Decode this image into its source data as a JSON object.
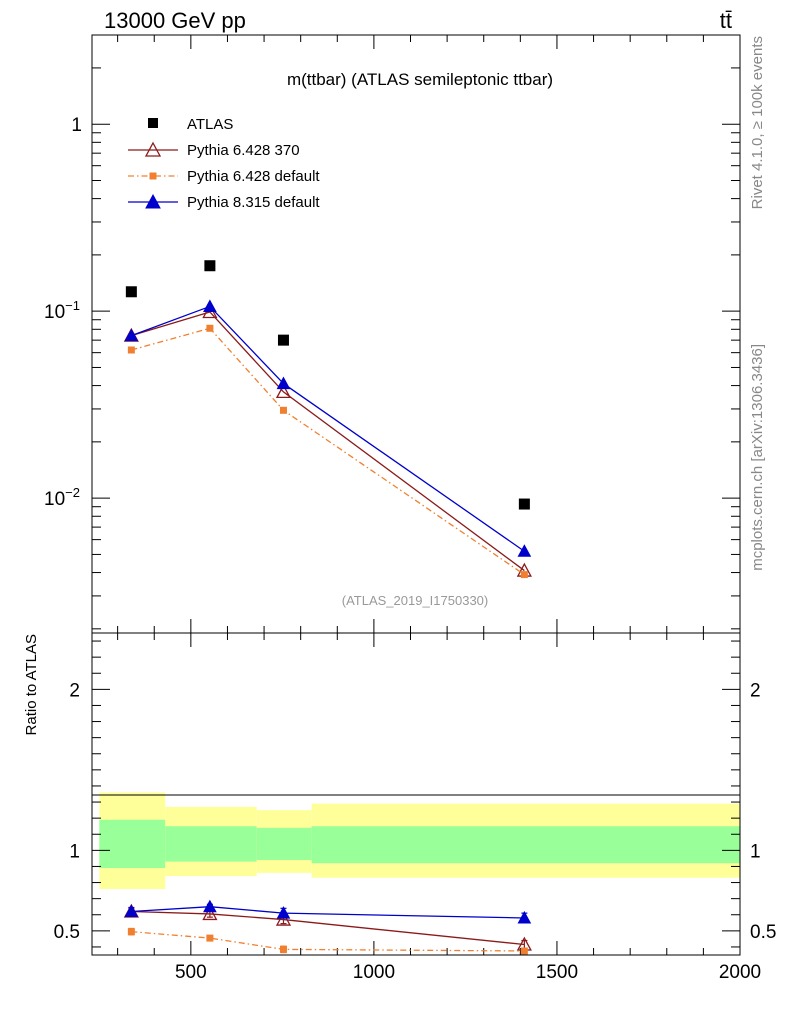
{
  "header": {
    "left": "13000 GeV pp",
    "right": "tt̄"
  },
  "side": {
    "rivet": "Rivet 4.1.0, ≥ 100k events",
    "mcplots": "mcplots.cern.ch [arXiv:1306.3436]"
  },
  "chart_data": [
    {
      "type": "scatter",
      "panel": "main",
      "title": "m(ttbar) (ATLAS semileptonic ttbar)",
      "watermark": "(ATLAS_2019_I1750330)",
      "yscale": "log",
      "xlim": [
        230,
        2000
      ],
      "ylim": [
        0.0019,
        3.0
      ],
      "ytick_labels": [
        {
          "value": 1,
          "base": "1",
          "exp": ""
        },
        {
          "value": 0.1,
          "base": "10",
          "exp": "−1"
        },
        {
          "value": 0.01,
          "base": "10",
          "exp": "−2"
        }
      ],
      "legend_position": "top-left",
      "x": [
        337.5,
        552,
        753,
        1411
      ],
      "series": [
        {
          "name": "ATLAS",
          "color": "#000000",
          "marker": "square",
          "line": "none",
          "values": [
            0.127,
            0.175,
            0.07,
            0.0093
          ]
        },
        {
          "name": "Pythia 6.428 370",
          "color": "#8b1a1a",
          "marker": "triangle-open",
          "line": "solid",
          "values": [
            0.074,
            0.099,
            0.037,
            0.0041
          ]
        },
        {
          "name": "Pythia 6.428 default",
          "color": "#f08030",
          "marker": "square-small",
          "line": "dashdot",
          "values": [
            0.062,
            0.081,
            0.0295,
            0.0039
          ]
        },
        {
          "name": "Pythia 8.315 default",
          "color": "#0000cc",
          "marker": "triangle",
          "line": "solid",
          "values": [
            0.074,
            0.106,
            0.041,
            0.0052
          ]
        }
      ]
    },
    {
      "type": "scatter",
      "panel": "ratio",
      "ylabel": "Ratio to ATLAS",
      "xlim": [
        230,
        2000
      ],
      "ylim": [
        0.35,
        2.35
      ],
      "yticks": [
        "0.5",
        "1",
        "2"
      ],
      "xticks": [
        "500",
        "1000",
        "1500",
        "2000"
      ],
      "bands": [
        {
          "x0": 250,
          "x1": 430,
          "outer": [
            0.76,
            1.36
          ],
          "inner": [
            0.89,
            1.19
          ]
        },
        {
          "x0": 430,
          "x1": 680,
          "outer": [
            0.84,
            1.27
          ],
          "inner": [
            0.93,
            1.15
          ]
        },
        {
          "x0": 680,
          "x1": 830,
          "outer": [
            0.86,
            1.25
          ],
          "inner": [
            0.94,
            1.14
          ]
        },
        {
          "x0": 830,
          "x1": 2000,
          "outer": [
            0.83,
            1.29
          ],
          "inner": [
            0.92,
            1.15
          ]
        }
      ],
      "band_colors": {
        "outer": "#ffff99",
        "inner": "#99ff99"
      },
      "x": [
        337.5,
        552,
        753,
        1411
      ],
      "series": [
        {
          "name": "Pythia 6.428 370",
          "color": "#8b1a1a",
          "marker": "triangle-open",
          "line": "solid",
          "values": [
            0.62,
            0.605,
            0.57,
            0.415
          ],
          "err": [
            0.02,
            0.02,
            0.025,
            0.025
          ]
        },
        {
          "name": "Pythia 6.428 default",
          "color": "#f08030",
          "marker": "square-small",
          "line": "dashdot",
          "values": [
            0.495,
            0.455,
            0.385,
            0.375
          ],
          "err": [
            0.02,
            0.015,
            0.02,
            0.015
          ]
        },
        {
          "name": "Pythia 8.315 default",
          "color": "#0000cc",
          "marker": "triangle",
          "line": "solid",
          "values": [
            0.62,
            0.65,
            0.61,
            0.58
          ],
          "err": [
            0.025,
            0.015,
            0.03,
            0.03
          ]
        }
      ]
    }
  ]
}
